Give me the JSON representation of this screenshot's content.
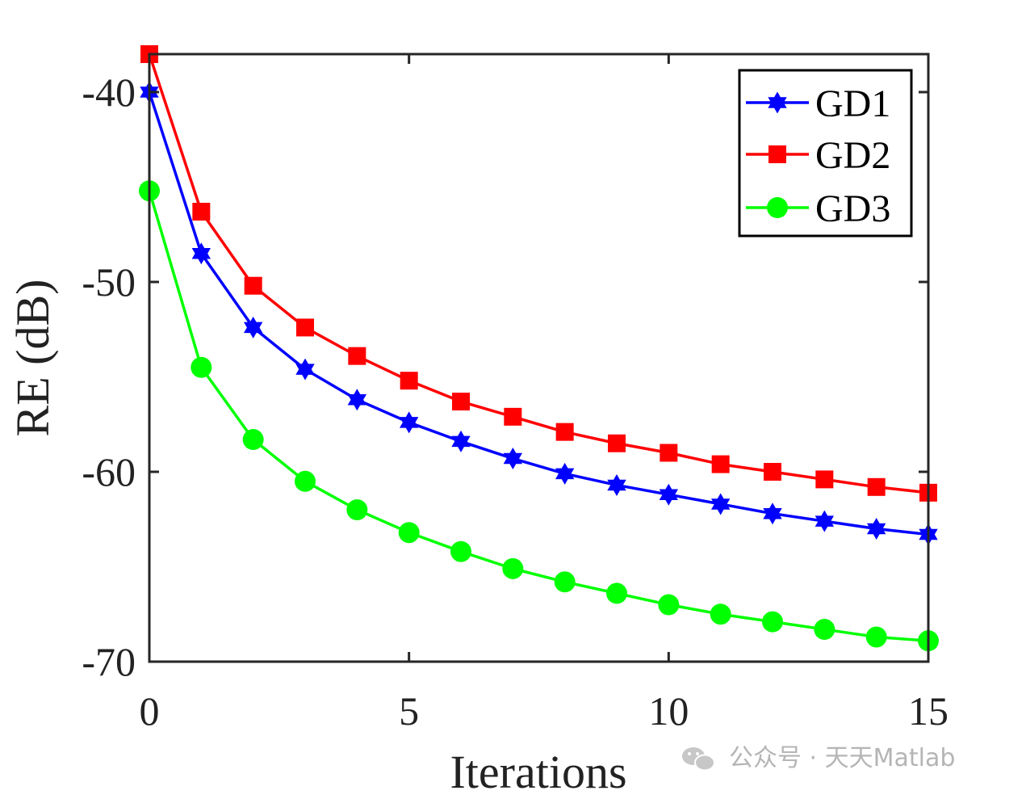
{
  "chart_data": {
    "type": "line",
    "title": "",
    "xlabel": "Iterations",
    "ylabel": "RE (dB)",
    "xlim": [
      0,
      15
    ],
    "ylim": [
      -70,
      -38
    ],
    "xticks": [
      0,
      5,
      10,
      15
    ],
    "yticks": [
      -40,
      -50,
      -60,
      -70
    ],
    "x": [
      0,
      1,
      2,
      3,
      4,
      5,
      6,
      7,
      8,
      9,
      10,
      11,
      12,
      13,
      14,
      15
    ],
    "grid": false,
    "legend_position": "top-right",
    "series": [
      {
        "name": "GD1",
        "color": "#0000ff",
        "marker": "hexagram",
        "values": [
          -40.0,
          -48.5,
          -52.4,
          -54.6,
          -56.2,
          -57.4,
          -58.4,
          -59.3,
          -60.1,
          -60.7,
          -61.2,
          -61.7,
          -62.2,
          -62.6,
          -63.0,
          -63.3
        ]
      },
      {
        "name": "GD2",
        "color": "#ff0000",
        "marker": "square",
        "values": [
          -38.0,
          -46.3,
          -50.2,
          -52.4,
          -53.9,
          -55.2,
          -56.3,
          -57.1,
          -57.9,
          -58.5,
          -59.0,
          -59.6,
          -60.0,
          -60.4,
          -60.8,
          -61.1
        ]
      },
      {
        "name": "GD3",
        "color": "#00ff00",
        "marker": "circle",
        "values": [
          -45.2,
          -54.5,
          -58.3,
          -60.5,
          -62.0,
          -63.2,
          -64.2,
          -65.1,
          -65.8,
          -66.4,
          -67.0,
          -67.5,
          -67.9,
          -68.3,
          -68.7,
          -68.9
        ]
      }
    ]
  },
  "watermark": {
    "icon": "wechat-icon",
    "text": "公众号 · 天天Matlab"
  }
}
